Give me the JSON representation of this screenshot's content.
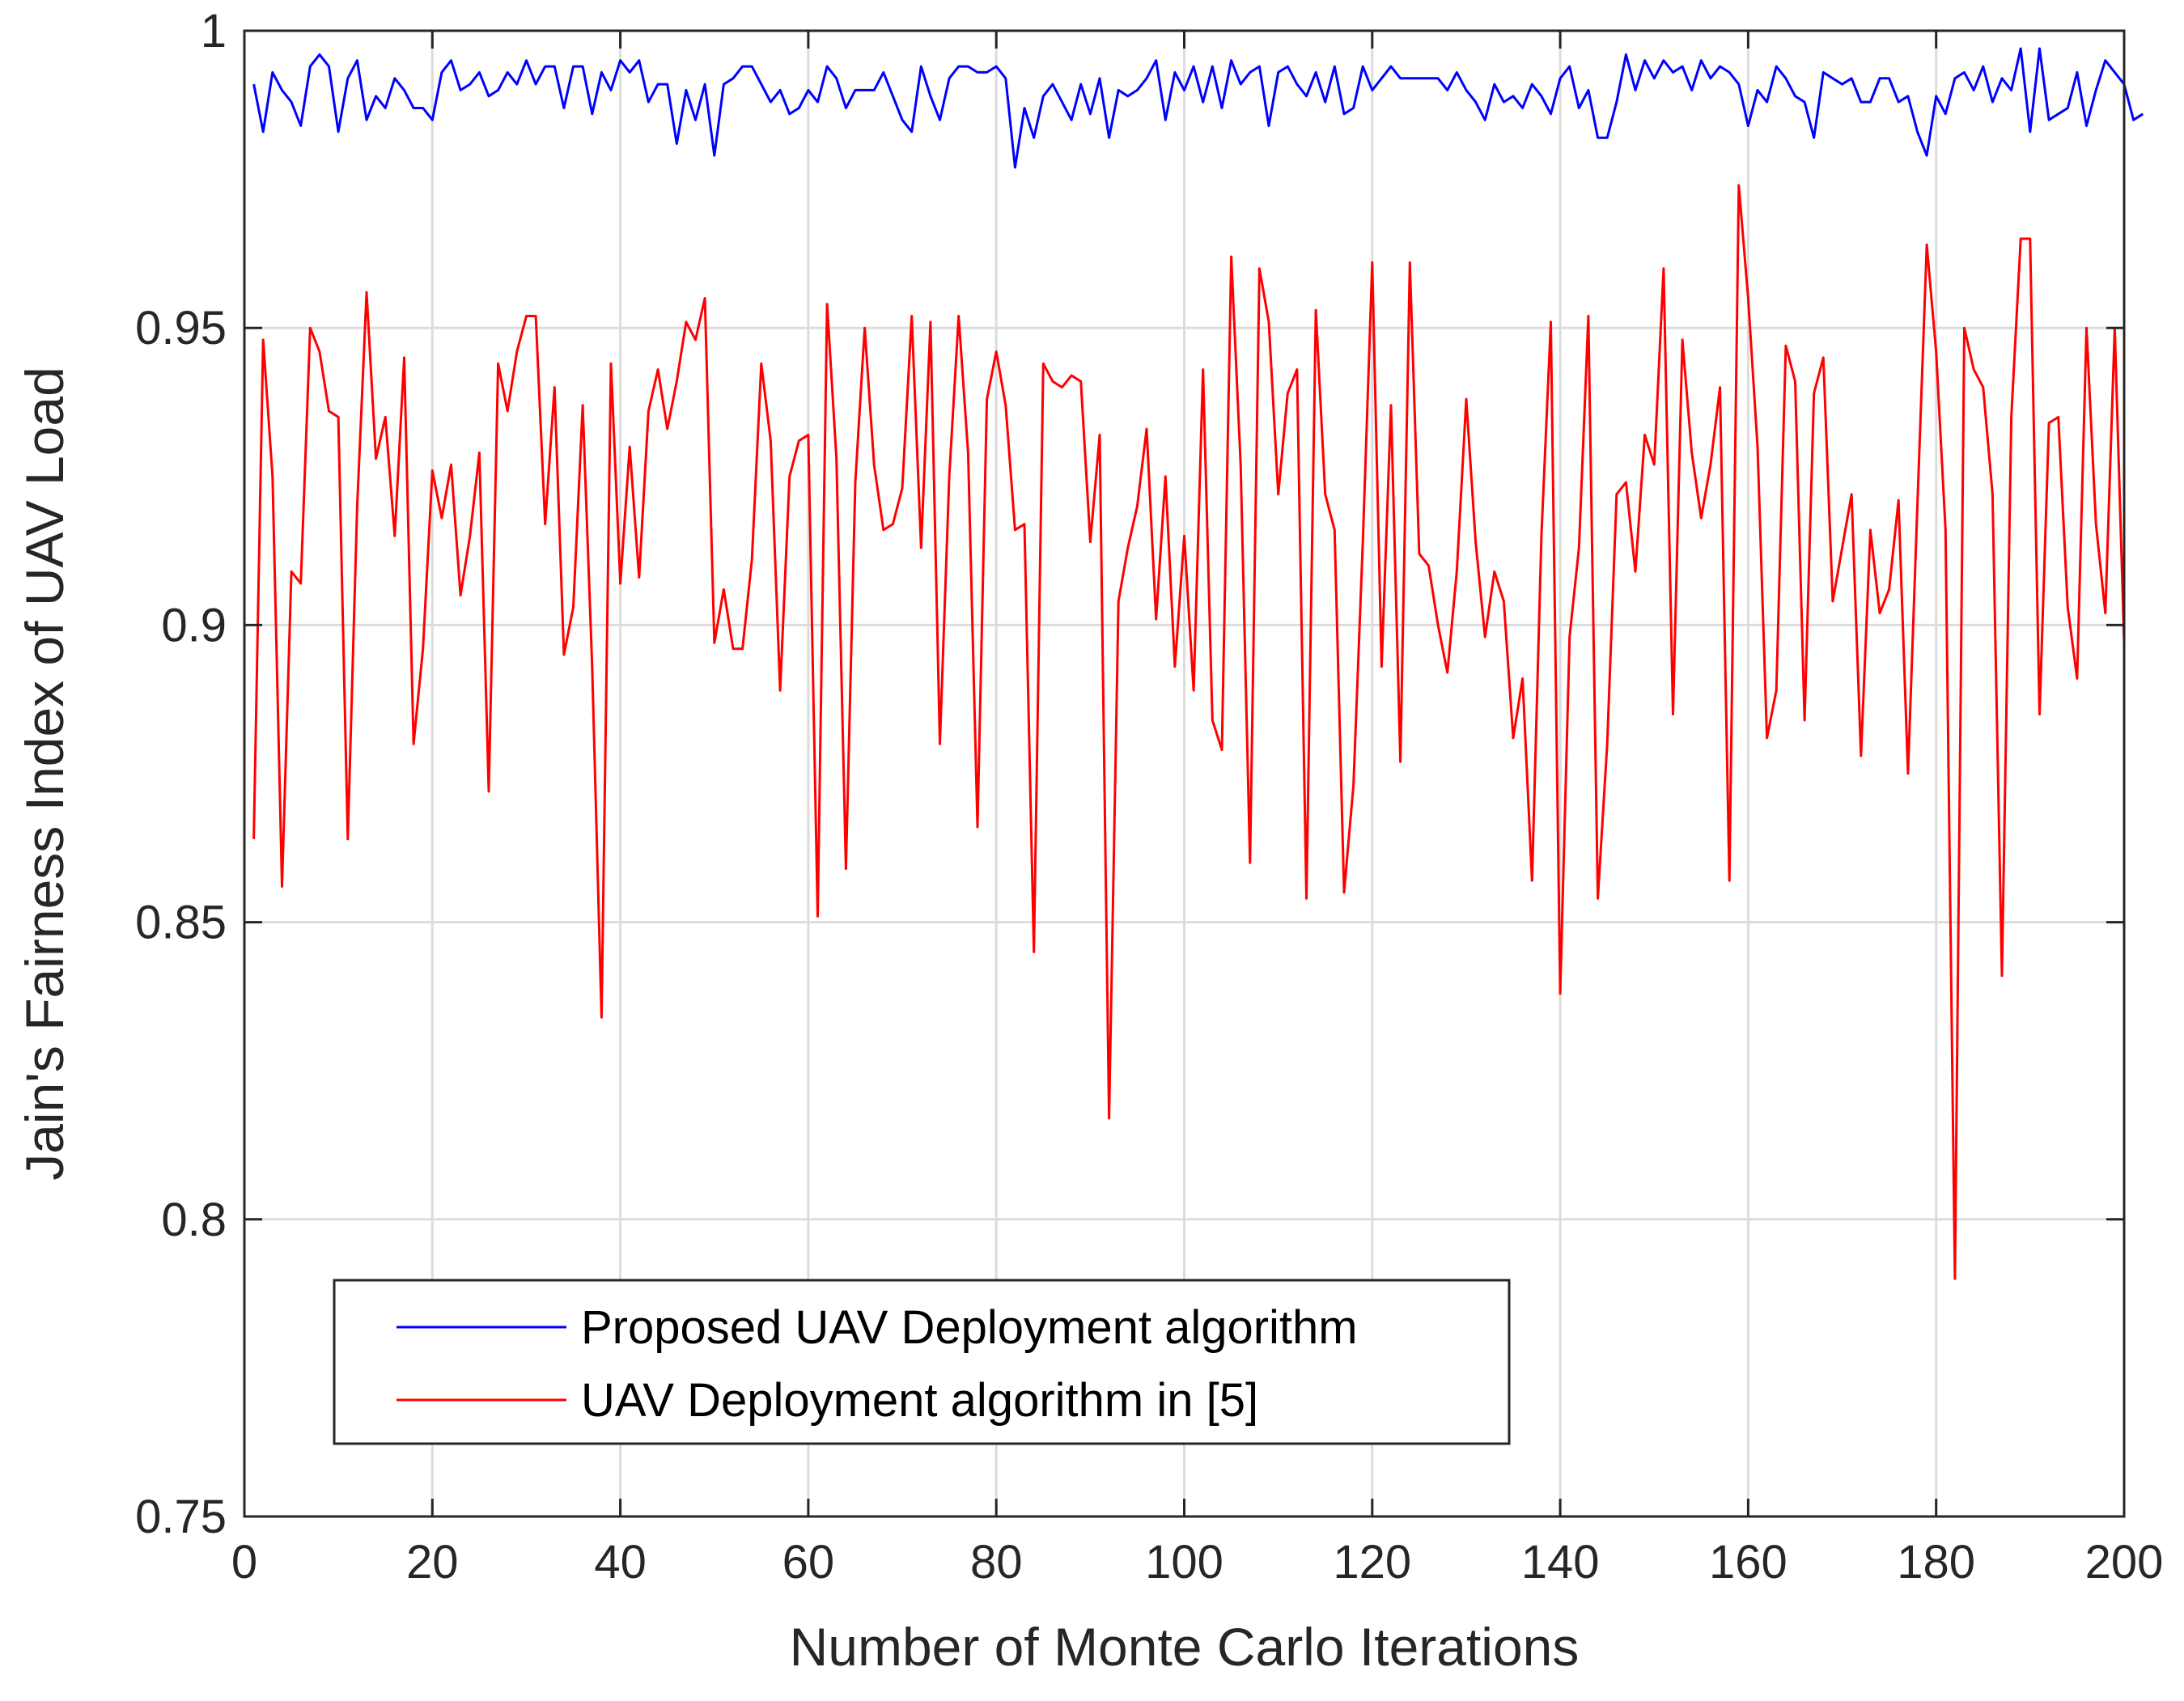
{
  "chart_data": {
    "type": "line",
    "title": "",
    "xlabel": "Number of Monte Carlo Iterations",
    "ylabel": "Jain's Fairness Index of UAV Load",
    "xlim": [
      0,
      200
    ],
    "ylim": [
      0.75,
      1.0
    ],
    "xticks": [
      0,
      20,
      40,
      60,
      80,
      100,
      120,
      140,
      160,
      180,
      200
    ],
    "xtick_labels": [
      "0",
      "20",
      "40",
      "60",
      "80",
      "100",
      "120",
      "140",
      "160",
      "180",
      "200"
    ],
    "yticks": [
      0.75,
      0.8,
      0.85,
      0.9,
      0.95,
      1.0
    ],
    "ytick_labels": [
      "0.75",
      "0.8",
      "0.85",
      "0.9",
      "0.95",
      "1"
    ],
    "grid": true,
    "legend_position": "bottom-left",
    "x_start": 1,
    "series": [
      {
        "name": "Proposed UAV Deployment algorithm",
        "color": "#0000ff",
        "values": [
          0.991,
          0.983,
          0.993,
          0.99,
          0.988,
          0.984,
          0.994,
          0.996,
          0.994,
          0.983,
          0.992,
          0.995,
          0.985,
          0.989,
          0.987,
          0.992,
          0.99,
          0.987,
          0.987,
          0.985,
          0.993,
          0.995,
          0.99,
          0.991,
          0.993,
          0.989,
          0.99,
          0.993,
          0.991,
          0.995,
          0.991,
          0.994,
          0.994,
          0.987,
          0.994,
          0.994,
          0.986,
          0.993,
          0.99,
          0.995,
          0.993,
          0.995,
          0.988,
          0.991,
          0.991,
          0.981,
          0.99,
          0.985,
          0.991,
          0.979,
          0.991,
          0.992,
          0.994,
          0.994,
          0.991,
          0.988,
          0.99,
          0.986,
          0.987,
          0.99,
          0.988,
          0.994,
          0.992,
          0.987,
          0.99,
          0.99,
          0.99,
          0.993,
          0.989,
          0.985,
          0.983,
          0.994,
          0.989,
          0.985,
          0.992,
          0.994,
          0.994,
          0.993,
          0.993,
          0.994,
          0.992,
          0.977,
          0.987,
          0.982,
          0.989,
          0.991,
          0.988,
          0.985,
          0.991,
          0.986,
          0.992,
          0.982,
          0.99,
          0.989,
          0.99,
          0.992,
          0.995,
          0.985,
          0.993,
          0.99,
          0.994,
          0.988,
          0.994,
          0.987,
          0.995,
          0.991,
          0.993,
          0.994,
          0.984,
          0.993,
          0.994,
          0.991,
          0.989,
          0.993,
          0.988,
          0.994,
          0.986,
          0.987,
          0.994,
          0.99,
          0.992,
          0.994,
          0.992,
          0.992,
          0.992,
          0.992,
          0.992,
          0.99,
          0.993,
          0.99,
          0.988,
          0.985,
          0.991,
          0.988,
          0.989,
          0.987,
          0.991,
          0.989,
          0.986,
          0.992,
          0.994,
          0.987,
          0.99,
          0.982,
          0.982,
          0.988,
          0.996,
          0.99,
          0.995,
          0.992,
          0.995,
          0.993,
          0.994,
          0.99,
          0.995,
          0.992,
          0.994,
          0.993,
          0.991,
          0.984,
          0.99,
          0.988,
          0.994,
          0.992,
          0.989,
          0.988,
          0.982,
          0.993,
          0.992,
          0.991,
          0.992,
          0.988,
          0.988,
          0.992,
          0.992,
          0.988,
          0.989,
          0.983,
          0.979,
          0.989,
          0.986,
          0.992,
          0.993,
          0.99,
          0.994,
          0.988,
          0.992,
          0.99,
          0.997,
          0.983,
          0.997,
          0.985,
          0.986,
          0.987,
          0.993,
          0.984,
          0.99,
          0.995,
          0.993,
          0.991,
          0.985,
          0.986
        ]
      },
      {
        "name": "UAV Deployment algorithm in [5]",
        "color": "#ff0000",
        "values": [
          0.864,
          0.948,
          0.925,
          0.856,
          0.909,
          0.907,
          0.95,
          0.946,
          0.936,
          0.935,
          0.864,
          0.92,
          0.956,
          0.928,
          0.935,
          0.915,
          0.945,
          0.88,
          0.896,
          0.926,
          0.918,
          0.927,
          0.905,
          0.915,
          0.929,
          0.872,
          0.944,
          0.936,
          0.946,
          0.952,
          0.952,
          0.917,
          0.94,
          0.895,
          0.903,
          0.937,
          0.893,
          0.834,
          0.944,
          0.907,
          0.93,
          0.908,
          0.936,
          0.943,
          0.933,
          0.941,
          0.951,
          0.948,
          0.955,
          0.897,
          0.906,
          0.896,
          0.896,
          0.911,
          0.944,
          0.931,
          0.889,
          0.925,
          0.931,
          0.932,
          0.851,
          0.954,
          0.928,
          0.859,
          0.924,
          0.95,
          0.927,
          0.916,
          0.917,
          0.923,
          0.952,
          0.913,
          0.951,
          0.88,
          0.925,
          0.952,
          0.929,
          0.866,
          0.938,
          0.946,
          0.937,
          0.916,
          0.917,
          0.845,
          0.944,
          0.941,
          0.94,
          0.942,
          0.941,
          0.914,
          0.932,
          0.817,
          0.904,
          0.913,
          0.92,
          0.933,
          0.901,
          0.925,
          0.893,
          0.915,
          0.889,
          0.943,
          0.884,
          0.879,
          0.962,
          0.927,
          0.86,
          0.96,
          0.951,
          0.922,
          0.939,
          0.943,
          0.854,
          0.953,
          0.922,
          0.916,
          0.855,
          0.873,
          0.914,
          0.961,
          0.893,
          0.937,
          0.877,
          0.961,
          0.912,
          0.91,
          0.9,
          0.892,
          0.909,
          0.938,
          0.914,
          0.898,
          0.909,
          0.904,
          0.881,
          0.891,
          0.857,
          0.915,
          0.951,
          0.838,
          0.898,
          0.913,
          0.952,
          0.854,
          0.88,
          0.922,
          0.924,
          0.909,
          0.932,
          0.927,
          0.96,
          0.885,
          0.948,
          0.929,
          0.918,
          0.927,
          0.94,
          0.857,
          0.974,
          0.955,
          0.93,
          0.881,
          0.889,
          0.947,
          0.941,
          0.884,
          0.939,
          0.945,
          0.904,
          0.913,
          0.922,
          0.878,
          0.916,
          0.902,
          0.906,
          0.921,
          0.875,
          0.92,
          0.964,
          0.946,
          0.916,
          0.79,
          0.95,
          0.943,
          0.94,
          0.922,
          0.841,
          0.935,
          0.965,
          0.965,
          0.885,
          0.934,
          0.935,
          0.903,
          0.891,
          0.95,
          0.917,
          0.902,
          0.95,
          0.897
        ]
      }
    ]
  }
}
